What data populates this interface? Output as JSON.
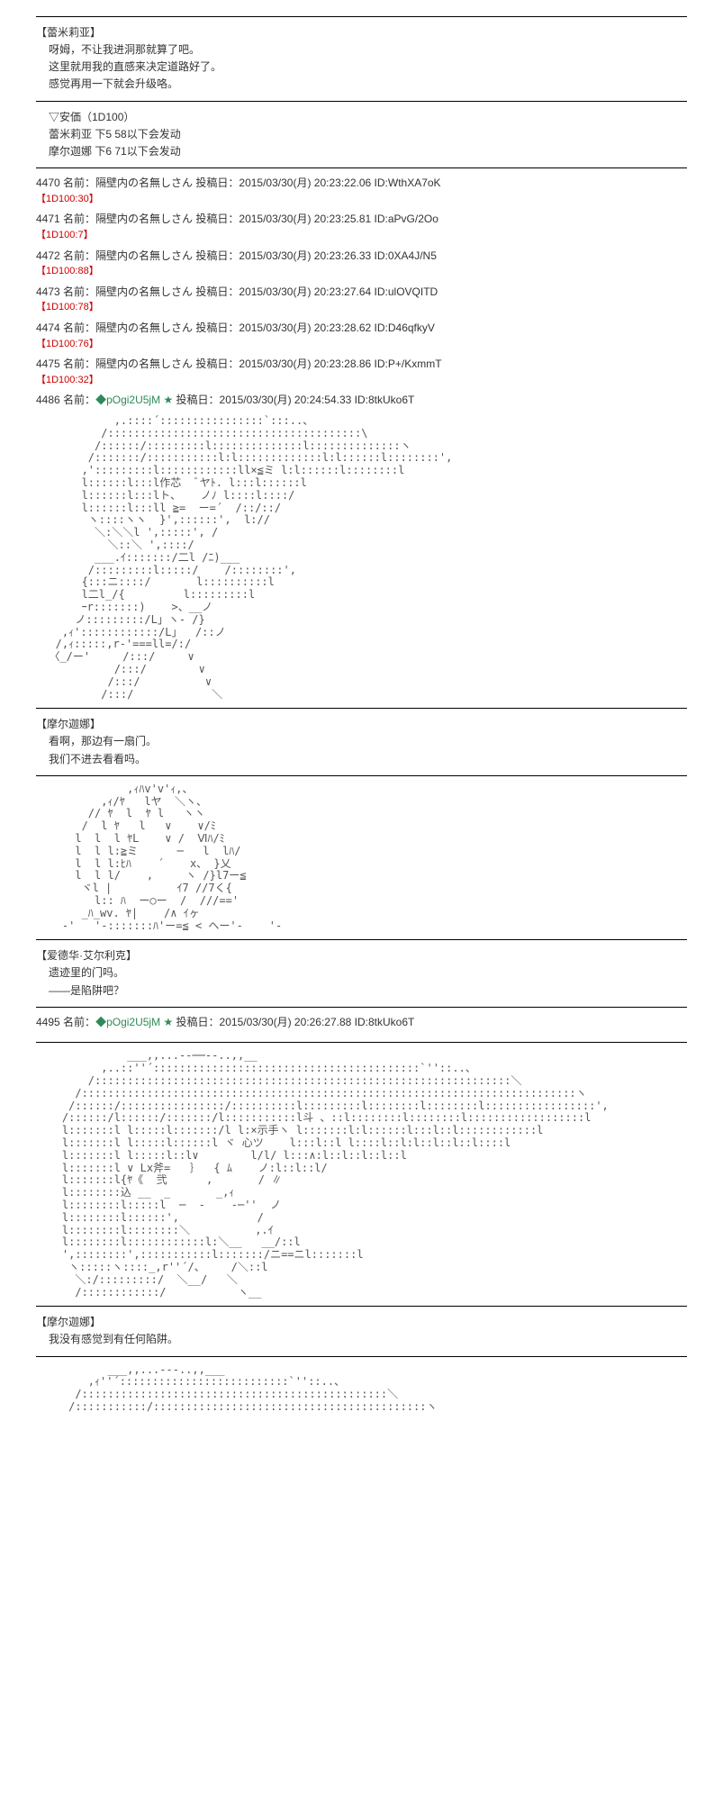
{
  "block1": {
    "speaker": "【蕾米莉亚】",
    "lines": [
      "呀姆，不让我进洞那就算了吧。",
      "这里就用我的直感来决定道路好了。",
      "感觉再用一下就会升级咯。"
    ]
  },
  "anka": {
    "title": "▽安価（1D100）",
    "line1": "蕾米莉亚  下5  58以下会发动",
    "line2": "摩尔迦娜  下6  71以下会发动"
  },
  "posts": [
    {
      "num": "4470",
      "name": "名前：隔壁内の名無しさん",
      "date": "投稿日：2015/03/30(月) 20:23:22.06",
      "id": "ID:WthXA7oK",
      "roll": "【1D100:30】"
    },
    {
      "num": "4471",
      "name": "名前：隔壁内の名無しさん",
      "date": "投稿日：2015/03/30(月) 20:23:25.81",
      "id": "ID:aPvG/2Oo",
      "roll": "【1D100:7】"
    },
    {
      "num": "4472",
      "name": "名前：隔壁内の名無しさん",
      "date": "投稿日：2015/03/30(月) 20:23:26.33",
      "id": "ID:0XA4J/N5",
      "roll": "【1D100:88】"
    },
    {
      "num": "4473",
      "name": "名前：隔壁内の名無しさん",
      "date": "投稿日：2015/03/30(月) 20:23:27.64",
      "id": "ID:ulOVQITD",
      "roll": "【1D100:78】"
    },
    {
      "num": "4474",
      "name": "名前：隔壁内の名無しさん",
      "date": "投稿日：2015/03/30(月) 20:23:28.62",
      "id": "ID:D46qfkyV",
      "roll": "【1D100:76】"
    },
    {
      "num": "4475",
      "name": "名前：隔壁内の名無しさん",
      "date": "投稿日：2015/03/30(月) 20:23:28.86",
      "id": "ID:P+/KxmmT",
      "roll": "【1D100:32】"
    }
  ],
  "post4486": {
    "num": "4486",
    "name_prefix": "名前：",
    "trip": "◆pOgi2U5jM",
    "star": "★",
    "date": "投稿日：2015/03/30(月) 20:24:54.33",
    "id": "ID:8tkUko6T"
  },
  "aa1": "            ,.::::´::::::::::::::::`:::..、\n          /:::::::::::::::::::::::::::::::::::::::\\\n         /::::::/:::::::::l::::::::::::::l::::::::::::::ヽ\n        /:::::::/:::::::::::l:l:::::::::::::l:l::::::l::::::::',\n       ,':::::::::l::::::::::::ll×≦ミ l:l::::::l::::::::l\n       l::::::l:::l作芯  ﾞヤﾄ. l:::l::::::l\n       l::::::l:::lト、   ノﾉ l::::l::::/\n       l::::::l:::ll ≧=  ー=´  /::/::/\n        ヽ::::ヽヽ  }',::::::',  l://\n         ＼:＼＼l ',:::::', /\n           ＼::＼ ',::::/\n         ___.ｲ:::::::/二l /ﾆ)___\n        /:::::::::l:::::/    /::::::::',\n       {:::ニ::::/       l::::::::::l\n       l二l_/{         l:::::::::l\n       ｰr:::::::)    >、__ノ\n      ノ:::::::::/L」ヽ- /}\n    ,ｨ'::::::::::::/L」  /::ノ\n   /,ｨ:::::,r-'===ll=/:/\n  〈_/ー'     /:::/     ∨\n            /:::/        ∨\n           /:::/          ∨\n          /:::/            ＼",
  "block2": {
    "speaker": "【摩尔迦娜】",
    "lines": [
      "看啊，那边有一扇门。",
      "我们不进去看看吗。"
    ]
  },
  "aa2": "              ,ｨﾊv'v'ｨ,、\n          ,ｨ/ﾔ   lヤ  ＼ヽ、\n        // ﾔ  l  ﾔ l   ヽヽ\n       /  l ﾔ   l   ∨    ∨/ﾐ\n      l  l  l ﾔL    ∨ /  Ⅵﾊ/ﾐ\n      l  l l:≧ミ      ─   l  lﾊ/\n      l  l l:ﾋﾊ    ´    x、 }乂\n      l  l l/    ,     ヽ /}l7ー≦\n       ヾl |          ｲ7 //7く{\n         l:: ﾊ  ー○ー  /  ///=='\n       _ﾊ_wv. ﾔ|    /∧ ｲヶ\n    -'   '-:::::::ﾊ'ー=≦ < ヘー'-    '-",
  "block3": {
    "speaker": "【爱德华·艾尔利克】",
    "lines": [
      "遗迹里的门吗。",
      "——是陷阱吧？"
    ]
  },
  "post4495": {
    "num": "4495",
    "name_prefix": "名前：",
    "trip": "◆pOgi2U5jM",
    "star": "★",
    "date": "投稿日：2015/03/30(月) 20:26:27.88",
    "id": "ID:8tkUko6T"
  },
  "aa3": "              ___,,...--──--..,,__\n          ,..::''´:::::::::::::::::::::::::::::::::::::::::`''::..、\n        /::::::::::::::::::::::::::::::::::::::::::::::::::::::::::::::::＼\n      /::::::::::::::::::::::::::::::::::::::::::::::::::::::::::::::::::::::::::::ヽ\n     /::::::/::::::::::::::::/::::::::::l:::::::::l::::::::l::::::::l:::::::::::::::::',\n    /::::::/l::::::/:::::::/l:::::::::::l斗 、::l::::::::l::::::::l::::::::::::::::::l\n    l:::::::l l:::::l:::::::/l l:×示手ヽ l:::::::l:l::::::l:::l::l::::::::::::l\n    l:::::::l l:::::l::::::l ヾ 心ツ    l:::l::l l::::l::l:l::l::l::l::::l\n    l:::::::l l:::::l::l∨        l/l/ l:::∧:l::l::l::l::l\n    l:::::::l ∨ Lx斧=   ｝  { ﾑ    ノ:l::l::l/\n    l:::::::l{ﾔ《  弐      ,       / ∥\n    l::::::::込 __  _       _,ｨ\n    l::::::::l:::::l  ─  -    -─''  ノ\n    l::::::::l::::::',            /\n    l::::::::l::::::::＼          ,.ｲ\n    l::::::::l::::::::::::l:＼__   __/::l\n    ',::::::::',:::::::::::l:::::::/ニ==ニl:::::::l\n     ヽ:::::ヽ::::_,r''´/、    /＼::l\n      ＼:/:::::::::/  ＼__/   ＼\n      /::::::::::::/           ヽ__",
  "block4": {
    "speaker": "【摩尔迦娜】",
    "lines": [
      "我没有感觉到有任何陷阱。"
    ]
  },
  "aa4": "           ___,,...---..,,___\n        ,ｨ''´::::::::::::::::::::::::::`''::..、\n      /:::::::::::::::::::::::::::::::::::::::::::::::＼\n     /:::::::::::/::::::::::::::::::::::::::::::::::::::::::ヽ"
}
